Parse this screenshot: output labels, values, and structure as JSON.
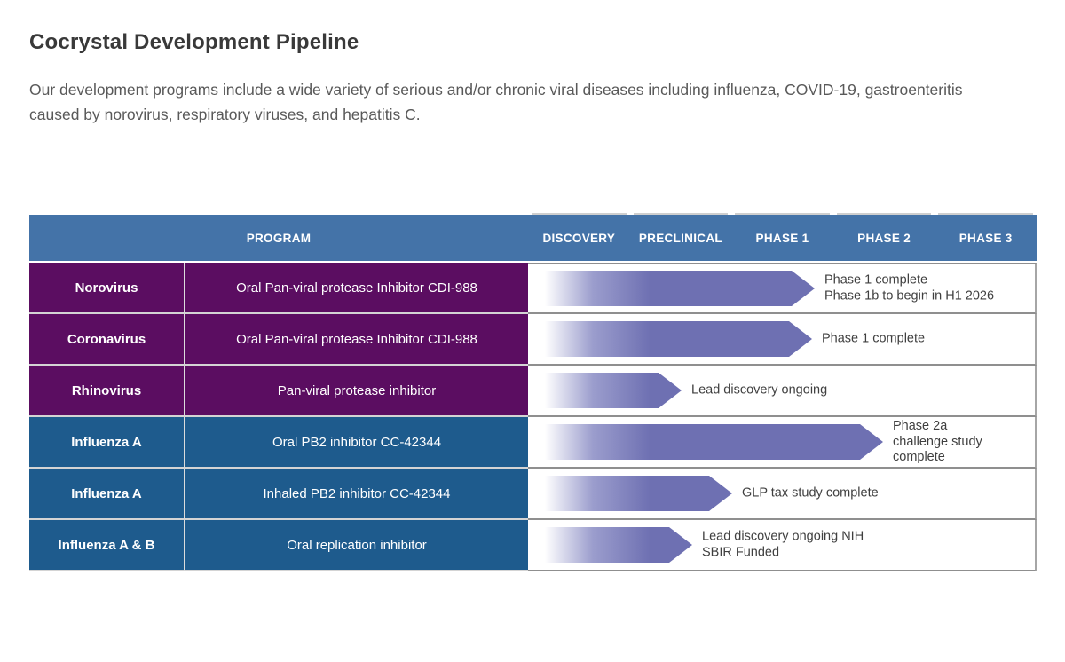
{
  "header": {
    "title": "Cocrystal Development Pipeline",
    "description": "Our development programs include a wide variety of serious and/or chronic viral diseases including influenza, COVID-19, gastroenteritis caused by norovirus, respiratory viruses, and hepatitis C."
  },
  "table": {
    "program_header": "PROGRAM",
    "phase_headers": [
      "DISCOVERY",
      "PRECLINICAL",
      "PHASE 1",
      "PHASE 2",
      "PHASE 3"
    ],
    "rows": [
      {
        "virus": "Norovirus",
        "program": "Oral Pan-viral protease Inhibitor CDI-988",
        "theme": "purple",
        "phase_progress": 2.82,
        "note": "Phase 1 complete\nPhase 1b to begin in H1 2026"
      },
      {
        "virus": "Coronavirus",
        "program": "Oral Pan-viral protease Inhibitor CDI-988",
        "theme": "purple",
        "phase_progress": 2.79,
        "note": "Phase 1 complete"
      },
      {
        "virus": "Rhinovirus",
        "program": "Pan-viral protease inhibitor",
        "theme": "purple",
        "phase_progress": 1.51,
        "note": "Lead discovery ongoing"
      },
      {
        "virus": "Influenza A",
        "program": "Oral PB2 inhibitor CC-42344",
        "theme": "blue",
        "phase_progress": 3.49,
        "note": "Phase 2a\nchallenge study\ncomplete"
      },
      {
        "virus": "Influenza A",
        "program": "Inhaled PB2 inhibitor CC-42344",
        "theme": "blue",
        "phase_progress": 2.01,
        "note": "GLP tax study complete"
      },
      {
        "virus": "Influenza A & B",
        "program": "Oral replication inhibitor",
        "theme": "blue",
        "phase_progress": 1.61,
        "note": "Lead discovery ongoing NIH\nSBIR Funded"
      }
    ]
  },
  "colors": {
    "header_blue": "#4473a8",
    "row_purple": "#5b0d61",
    "row_blue": "#1e5b8d",
    "arrow_fill": "#6e70b2",
    "note_text": "#3f3f3f"
  },
  "chart_data": {
    "type": "bar",
    "title": "Cocrystal Development Pipeline",
    "orientation": "horizontal",
    "x_axis_ticks": [
      "DISCOVERY",
      "PRECLINICAL",
      "PHASE 1",
      "PHASE 2",
      "PHASE 3"
    ],
    "x_range_phase_units": [
      0,
      5
    ],
    "categories": [
      "Norovirus — Oral Pan-viral protease Inhibitor CDI-988",
      "Coronavirus — Oral Pan-viral protease Inhibitor CDI-988",
      "Rhinovirus — Pan-viral protease inhibitor",
      "Influenza A — Oral PB2 inhibitor CC-42344",
      "Influenza A — Inhaled PB2 inhibitor CC-42344",
      "Influenza A & B — Oral replication inhibitor"
    ],
    "values_phase_units": [
      2.82,
      2.79,
      1.51,
      3.49,
      2.01,
      1.61
    ],
    "annotations": [
      "Phase 1 complete / Phase 1b to begin in H1 2026",
      "Phase 1 complete",
      "Lead discovery ongoing",
      "Phase 2a challenge study complete",
      "GLP tax study complete",
      "Lead discovery ongoing NIH SBIR Funded"
    ],
    "legend": false,
    "grid": false
  }
}
